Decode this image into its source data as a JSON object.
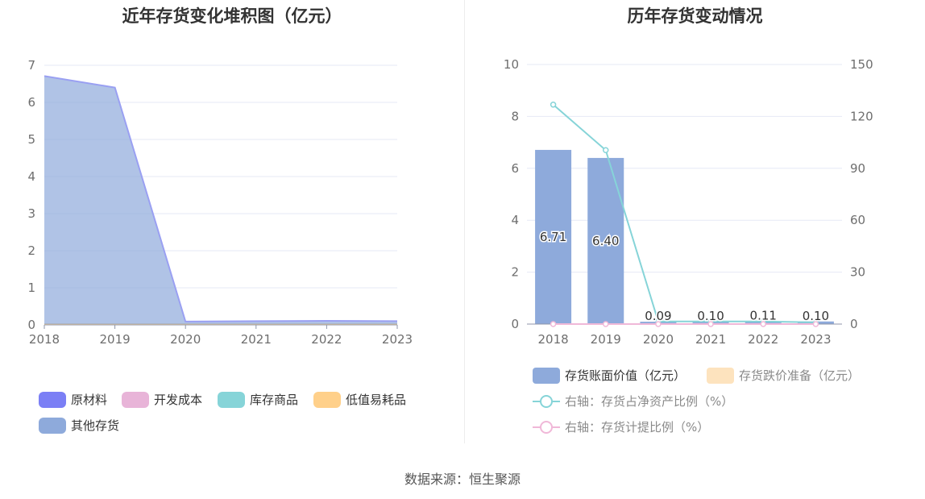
{
  "source": "数据来源：恒生聚源",
  "colors": {
    "raw": "#7b7ff5",
    "wip": "#e8b4d8",
    "goods": "#86d4d8",
    "consumables": "#ffd08a",
    "other": "#8eaadb",
    "bar_book": "#8eaadb",
    "bar_reserve": "#fde3be",
    "line_net": "#86d4d8",
    "line_reserve": "#f0b8d8"
  },
  "chart_data": [
    {
      "type": "area",
      "title": "近年存货变化堆积图（亿元）",
      "categories": [
        "2018",
        "2019",
        "2020",
        "2021",
        "2022",
        "2023"
      ],
      "stacked": true,
      "ylim": [
        0,
        7
      ],
      "yticks": [
        "0",
        "1",
        "2",
        "3",
        "4",
        "5",
        "6",
        "7"
      ],
      "grid": true,
      "legend_position": "bottom",
      "series": [
        {
          "name": "原材料",
          "values": [
            0.02,
            0.02,
            0.02,
            0.02,
            0.02,
            0.02
          ]
        },
        {
          "name": "开发成本",
          "values": [
            0,
            0,
            0,
            0,
            0,
            0
          ]
        },
        {
          "name": "库存商品",
          "values": [
            0,
            0,
            0,
            0,
            0,
            0
          ]
        },
        {
          "name": "低值易耗品",
          "values": [
            0,
            0,
            0,
            0,
            0,
            0
          ]
        },
        {
          "name": "其他存货",
          "values": [
            6.69,
            6.38,
            0.07,
            0.08,
            0.09,
            0.08
          ]
        }
      ]
    },
    {
      "type": "bar",
      "title": "历年存货变动情况",
      "categories": [
        "2018",
        "2019",
        "2020",
        "2021",
        "2022",
        "2023"
      ],
      "ylim": [
        0,
        10
      ],
      "yticks": [
        "0",
        "2",
        "4",
        "6",
        "8",
        "10"
      ],
      "y2lim": [
        0,
        150
      ],
      "y2ticks": [
        "0",
        "30",
        "60",
        "90",
        "120",
        "150"
      ],
      "grid": true,
      "legend_position": "bottom",
      "series": [
        {
          "name": "存货账面价值（亿元）",
          "type": "bar",
          "values": [
            6.71,
            6.4,
            0.09,
            0.1,
            0.11,
            0.1
          ],
          "labels": [
            "6.71",
            "6.40",
            "0.09",
            "0.10",
            "0.11",
            "0.10"
          ]
        },
        {
          "name": "存货跌价准备（亿元）",
          "type": "bar",
          "values": [
            0,
            0,
            0,
            0,
            0,
            0
          ]
        },
        {
          "name": "右轴：存货占净资产比例（%）",
          "type": "line",
          "axis": "right",
          "values": [
            126.8,
            100.5,
            1.5,
            1.5,
            1.5,
            1.0
          ]
        },
        {
          "name": "右轴：存货计提比例（%）",
          "type": "line",
          "axis": "right",
          "values": [
            0,
            0,
            0,
            0,
            0,
            0
          ]
        }
      ]
    }
  ]
}
